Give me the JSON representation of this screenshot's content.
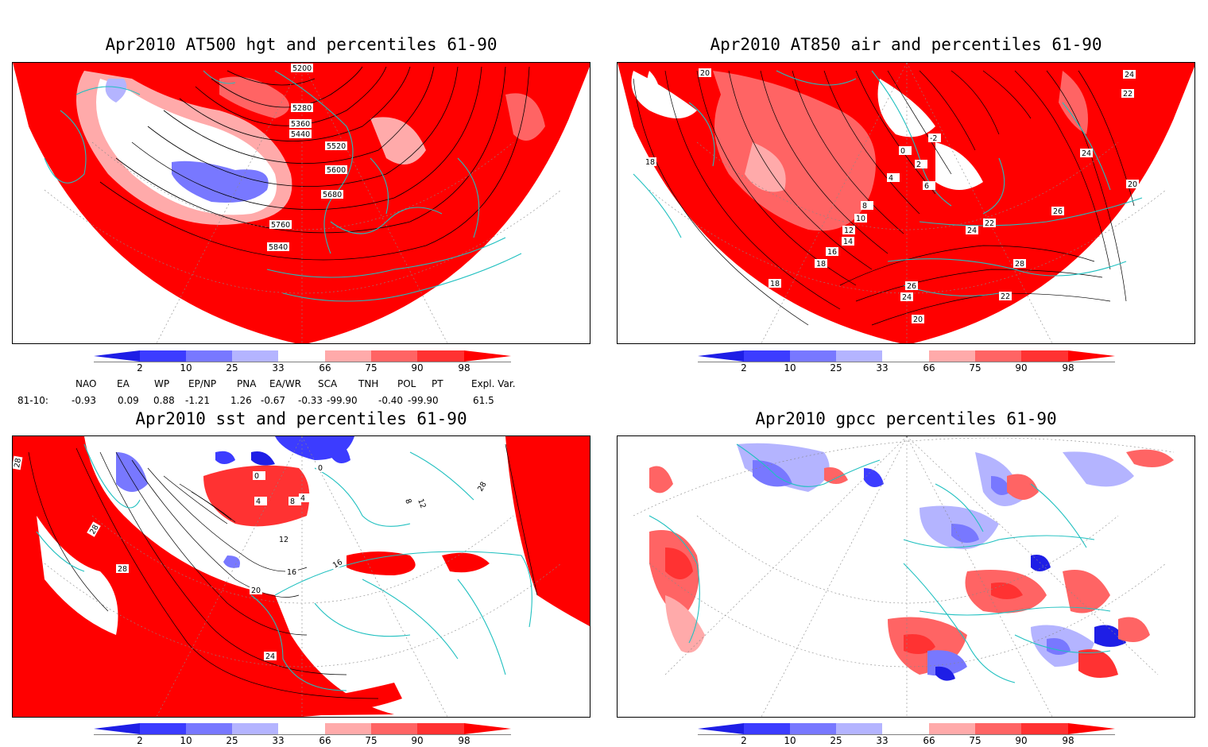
{
  "panels": [
    {
      "id": "p1",
      "title": "Apr2010 AT500 hgt and percentiles 61-90",
      "contour_labels": [
        "5200",
        "5280",
        "5360",
        "5440",
        "5520",
        "5600",
        "5680",
        "5760",
        "5840"
      ]
    },
    {
      "id": "p2",
      "title": "Apr2010 AT850 air and percentiles 61-90",
      "contour_labels": [
        "20",
        "24",
        "22",
        "18",
        "-2",
        "0",
        "2",
        "4",
        "6",
        "8",
        "10",
        "12",
        "14",
        "16",
        "18",
        "22",
        "24",
        "26",
        "24",
        "28",
        "22",
        "20",
        "24",
        "26",
        "20",
        "18"
      ]
    },
    {
      "id": "p3",
      "title": "Apr2010 sst and percentiles 61-90",
      "contour_labels": [
        "28",
        "28",
        "28",
        "0",
        "0",
        "4",
        "8",
        "4",
        "12",
        "16",
        "16",
        "20",
        "24",
        "8",
        "12",
        "28"
      ]
    },
    {
      "id": "p4",
      "title": "Apr2010 gpcc percentiles 61-90",
      "contour_labels": []
    }
  ],
  "colorbar": {
    "ticks": [
      "2",
      "10",
      "25",
      "33",
      "66",
      "75",
      "90",
      "98"
    ],
    "colors": {
      "below_2": "#1e1ee6",
      "c2_10": "#3c3cff",
      "c10_25": "#7878ff",
      "c25_33": "#b4b4ff",
      "c33_66": "#ffffff",
      "c66_75": "#ffaaaa",
      "c75_90": "#ff6464",
      "c90_98": "#ff3232",
      "above_98": "#ff0000"
    }
  },
  "indices": {
    "headers": [
      "NAO",
      "EA",
      "WP",
      "EP/NP",
      "PNA",
      "EA/WR",
      "SCA",
      "TNH",
      "POL",
      "PT",
      "Expl. Var."
    ],
    "row_label": "81-10:",
    "values": [
      "-0.93",
      "0.09",
      "0.88",
      "-1.21",
      "1.26",
      "-0.67",
      "-0.33",
      "-99.90",
      "-0.40",
      "-99.90",
      "61.5"
    ]
  },
  "colors": {
    "coast": "#20c0c0",
    "contour": "#000000",
    "grid": "#999999"
  }
}
